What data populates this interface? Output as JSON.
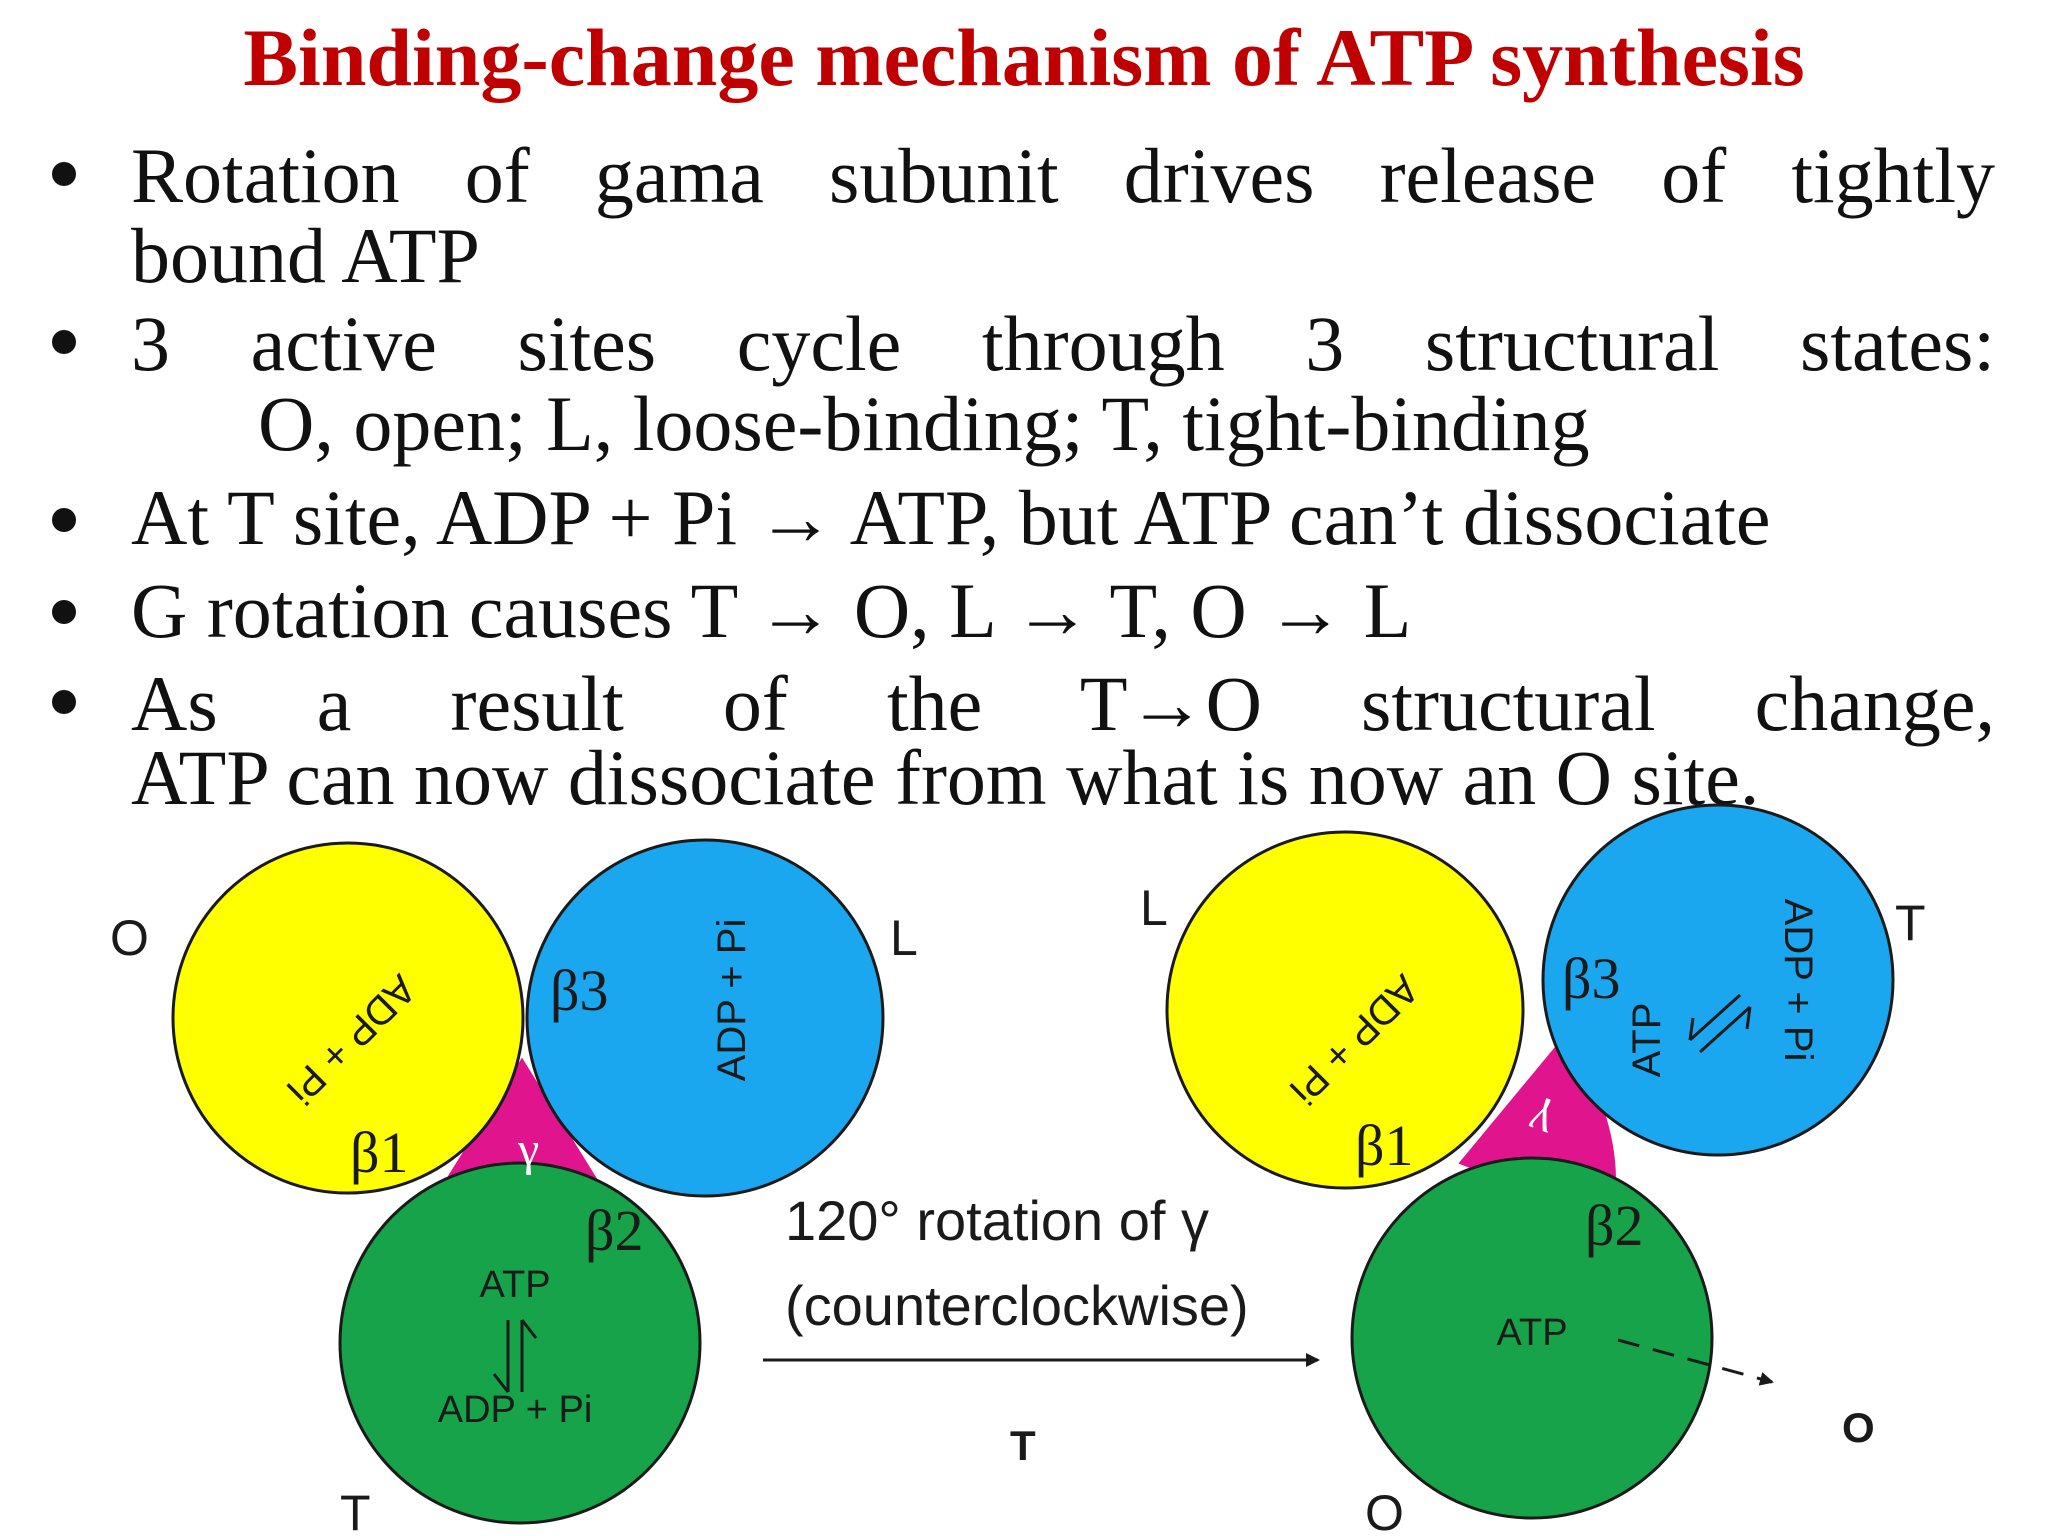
{
  "title": "Binding-change mechanism of ATP synthesis",
  "bullets": [
    {
      "lines": [
        "Rotation of gama subunit drives release of tightly",
        "bound ATP"
      ]
    },
    {
      "lines": [
        "3 active sites cycle through 3 structural states:",
        "O, open; L, loose-binding; T, tight-binding"
      ]
    },
    {
      "lines": [
        "At T site, ADP + Pi → ATP, but ATP can’t dissociate"
      ]
    },
    {
      "lines": [
        "G rotation causes T → O, L → T, O → L"
      ]
    },
    {
      "lines": [
        "As a result of the T→O structural change,",
        "ATP can now dissociate from what is now an O site."
      ]
    }
  ],
  "diagram": {
    "colors": {
      "yellow": "#ffff00",
      "blue": "#1aa7f0",
      "green": "#16a34a",
      "magenta": "#e0148c",
      "outline": "#1a1a1a"
    },
    "left": {
      "state_b1": "O",
      "state_b3": "L",
      "state_b2": "T",
      "beta1": "β1",
      "beta3": "β3",
      "beta2": "β2",
      "gamma": "γ",
      "b1_content": "ADP + Pi",
      "b3_content": "ADP + Pi",
      "b2_top": "ATP",
      "b2_bottom": "ADP + Pi"
    },
    "arrow": {
      "line1": "120° rotation of γ",
      "line2": "(counterclockwise)",
      "below": "T"
    },
    "right": {
      "state_b1": "L",
      "state_b3": "T",
      "state_b2": "O",
      "beta1": "β1",
      "beta3": "β3",
      "beta2": "β2",
      "gamma": "γ",
      "b1_content": "ADP + Pi",
      "b3_left": "ATP",
      "b3_right": "ADP + Pi",
      "b2_content": "ATP",
      "released": "O"
    }
  }
}
